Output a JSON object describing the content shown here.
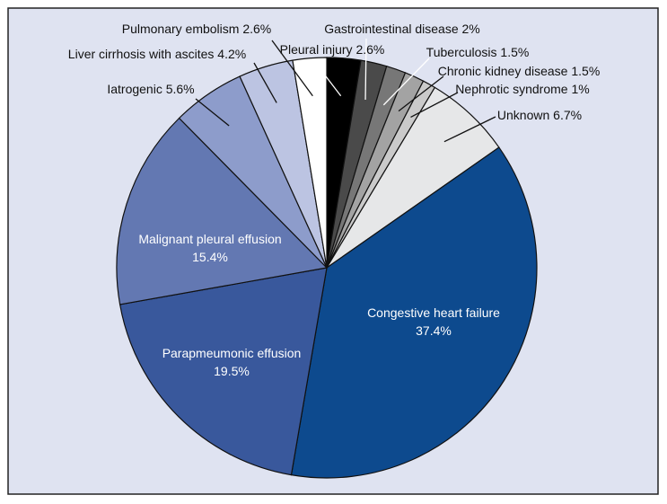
{
  "chart_data": {
    "type": "pie",
    "title": "",
    "start_angle_deg": 0,
    "direction": "clockwise",
    "frame_fill": "#dfe3f1",
    "frame_stroke": "#222222",
    "slices": [
      {
        "name": "Pleural injury",
        "label": "Pleural injury 2.6%",
        "value": 2.6,
        "color": "#000000",
        "label_inside": false
      },
      {
        "name": "Gastrointestinal disease",
        "label": "Gastrointestinal disease 2%",
        "value": 2.0,
        "color": "#4a4a4a",
        "label_inside": false
      },
      {
        "name": "Tuberculosis",
        "label": "Tuberculosis 1.5%",
        "value": 1.5,
        "color": "#777777",
        "label_inside": false
      },
      {
        "name": "Chronic kidney disease",
        "label": "Chronic kidney disease 1.5%",
        "value": 1.5,
        "color": "#a3a3a3",
        "label_inside": false
      },
      {
        "name": "Nephrotic syndrome",
        "label": "Nephrotic syndrome 1%",
        "value": 1.0,
        "color": "#cacaca",
        "label_inside": false
      },
      {
        "name": "Unknown",
        "label": "Unknown 6.7%",
        "value": 6.7,
        "color": "#e6e7e8",
        "label_inside": false
      },
      {
        "name": "Congestive heart failure",
        "label": "Congestive heart failure",
        "label2": "37.4%",
        "value": 37.4,
        "color": "#0d4a8e",
        "label_inside": true
      },
      {
        "name": "Parapmeumonic effusion",
        "label": "Parapmeumonic effusion",
        "label2": "19.5%",
        "value": 19.5,
        "color": "#39589c",
        "label_inside": true
      },
      {
        "name": "Malignant pleural effusion",
        "label": "Malignant pleural effusion",
        "label2": "15.4%",
        "value": 15.4,
        "color": "#6378b2",
        "label_inside": true
      },
      {
        "name": "Iatrogenic",
        "label": "Iatrogenic 5.6%",
        "value": 5.6,
        "color": "#8d9ccb",
        "label_inside": false
      },
      {
        "name": "Liver cirrhosis with ascites",
        "label": "Liver cirrhosis with ascites 4.2%",
        "value": 4.2,
        "color": "#bcc4e2",
        "label_inside": false
      },
      {
        "name": "Pulmonary embolism",
        "label": "Pulmonary embolism 2.6%",
        "value": 2.6,
        "color": "#ffffff",
        "label_inside": false
      }
    ]
  }
}
